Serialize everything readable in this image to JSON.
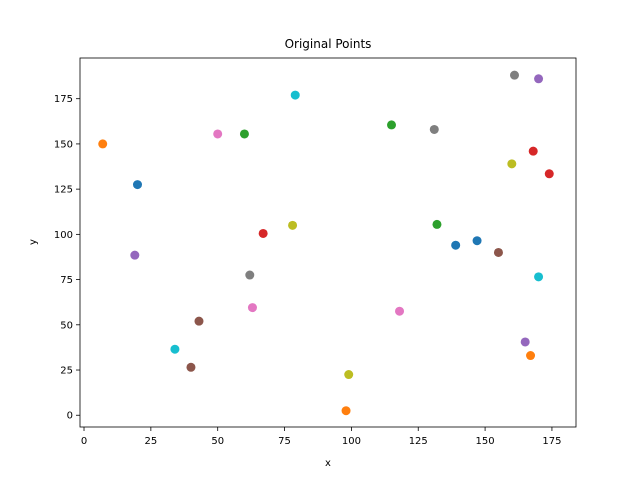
{
  "chart_data": {
    "type": "scatter",
    "title": "Original Points",
    "xlabel": "x",
    "ylabel": "y",
    "xlim": [
      -1.5,
      184
    ],
    "ylim": [
      -6.5,
      197.5
    ],
    "xticks": [
      0,
      25,
      50,
      75,
      100,
      125,
      150,
      175
    ],
    "yticks": [
      0,
      25,
      50,
      75,
      100,
      125,
      150,
      175
    ],
    "grid": false,
    "points": [
      {
        "x": 20,
        "y": 127.5,
        "color": "#1f77b4"
      },
      {
        "x": 139,
        "y": 94,
        "color": "#1f77b4"
      },
      {
        "x": 147,
        "y": 96.5,
        "color": "#1f77b4"
      },
      {
        "x": 7,
        "y": 150,
        "color": "#ff7f0e"
      },
      {
        "x": 98,
        "y": 2.5,
        "color": "#ff7f0e"
      },
      {
        "x": 167,
        "y": 33,
        "color": "#ff7f0e"
      },
      {
        "x": 60,
        "y": 155.5,
        "color": "#2ca02c"
      },
      {
        "x": 115,
        "y": 160.5,
        "color": "#2ca02c"
      },
      {
        "x": 132,
        "y": 105.5,
        "color": "#2ca02c"
      },
      {
        "x": 67,
        "y": 100.5,
        "color": "#d62728"
      },
      {
        "x": 168,
        "y": 146,
        "color": "#d62728"
      },
      {
        "x": 174,
        "y": 133.5,
        "color": "#d62728"
      },
      {
        "x": 19,
        "y": 88.5,
        "color": "#9467bd"
      },
      {
        "x": 165,
        "y": 40.5,
        "color": "#9467bd"
      },
      {
        "x": 170,
        "y": 186,
        "color": "#9467bd"
      },
      {
        "x": 40,
        "y": 26.5,
        "color": "#8c564b"
      },
      {
        "x": 43,
        "y": 52,
        "color": "#8c564b"
      },
      {
        "x": 155,
        "y": 90,
        "color": "#8c564b"
      },
      {
        "x": 50,
        "y": 155.5,
        "color": "#e377c2"
      },
      {
        "x": 63,
        "y": 59.5,
        "color": "#e377c2"
      },
      {
        "x": 118,
        "y": 57.5,
        "color": "#e377c2"
      },
      {
        "x": 62,
        "y": 77.5,
        "color": "#7f7f7f"
      },
      {
        "x": 131,
        "y": 158,
        "color": "#7f7f7f"
      },
      {
        "x": 161,
        "y": 188,
        "color": "#7f7f7f"
      },
      {
        "x": 78,
        "y": 105,
        "color": "#bcbd22"
      },
      {
        "x": 99,
        "y": 22.5,
        "color": "#bcbd22"
      },
      {
        "x": 160,
        "y": 139,
        "color": "#bcbd22"
      },
      {
        "x": 34,
        "y": 36.5,
        "color": "#17becf"
      },
      {
        "x": 79,
        "y": 177,
        "color": "#17becf"
      },
      {
        "x": 170,
        "y": 76.5,
        "color": "#17becf"
      }
    ]
  }
}
